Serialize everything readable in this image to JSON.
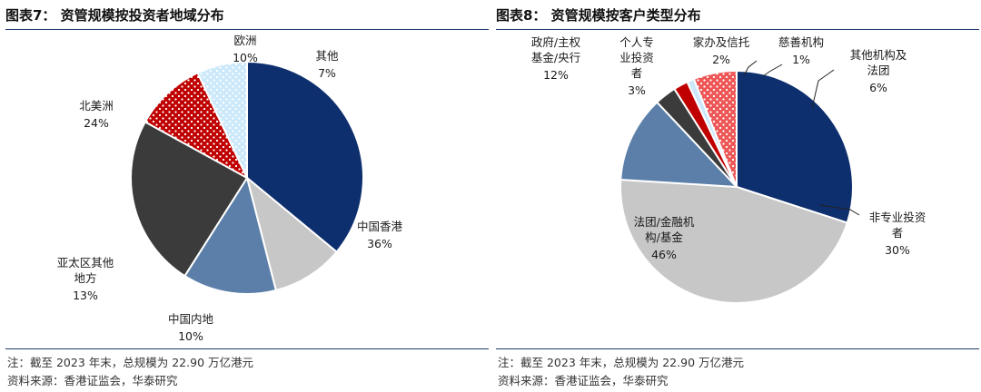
{
  "charts": {
    "left": {
      "title": "图表7：  资管规模按投资者地域分布"
    },
    "right": {
      "title": "图表8：  资管规模按客户类型分布"
    }
  },
  "notes": {
    "left": {
      "note": "注：截至 2023 年末，总规模为 22.90 万亿港元",
      "source": "资料来源：香港证监会，华泰研究"
    },
    "right": {
      "note": "注：截至 2023 年末，总规模为 22.90 万亿港元",
      "source": "资料来源：香港证监会，华泰研究"
    }
  },
  "chart_data": [
    {
      "type": "pie",
      "title": "图表7：  资管规模按投资者地域分布",
      "categories": [
        "中国香港",
        "中国内地",
        "亚太区其他地方",
        "北美洲",
        "欧洲",
        "其他"
      ],
      "values": [
        36,
        10,
        13,
        24,
        10,
        7
      ],
      "unit": "%",
      "colors": [
        "#0e2f6e",
        "#c7c7c7",
        "#5b7fa8",
        "#3b3b3b",
        "#c00000",
        "#cce9fb"
      ],
      "patterns": [
        "solid",
        "solid",
        "solid",
        "solid",
        "dots",
        "dots"
      ],
      "labels": [
        {
          "name": "中国香港",
          "value": "36%"
        },
        {
          "name": "中国内地",
          "value": "10%"
        },
        {
          "name": "亚太区其他\n地方",
          "value": "13%"
        },
        {
          "name": "北美洲",
          "value": "24%"
        },
        {
          "name": "欧洲",
          "value": "10%"
        },
        {
          "name": "其他",
          "value": "7%"
        }
      ]
    },
    {
      "type": "pie",
      "title": "图表8：  资管规模按客户类型分布",
      "categories": [
        "非专业投资者",
        "法团/金融机构/基金",
        "政府/主权基金/央行",
        "个人专业投资者",
        "家办及信托",
        "慈善机构",
        "其他机构及法团"
      ],
      "values": [
        30,
        46,
        12,
        3,
        2,
        1,
        6
      ],
      "unit": "%",
      "colors": [
        "#0e2f6e",
        "#c7c7c7",
        "#5b7fa8",
        "#3b3b3b",
        "#c00000",
        "#cce9fb",
        "#ee5656"
      ],
      "patterns": [
        "solid",
        "solid",
        "solid",
        "solid",
        "solid",
        "solid",
        "dots"
      ],
      "labels": [
        {
          "name": "非专业投资\n者",
          "value": "30%"
        },
        {
          "name": "法团/金融机\n构/基金",
          "value": "46%"
        },
        {
          "name": "政府/主权\n基金/央行",
          "value": "12%"
        },
        {
          "name": "个人专\n业投资\n者",
          "value": "3%"
        },
        {
          "name": "家办及信托",
          "value": "2%"
        },
        {
          "name": "慈善机构",
          "value": "1%"
        },
        {
          "name": "其他机构及\n法团",
          "value": "6%"
        }
      ]
    }
  ]
}
